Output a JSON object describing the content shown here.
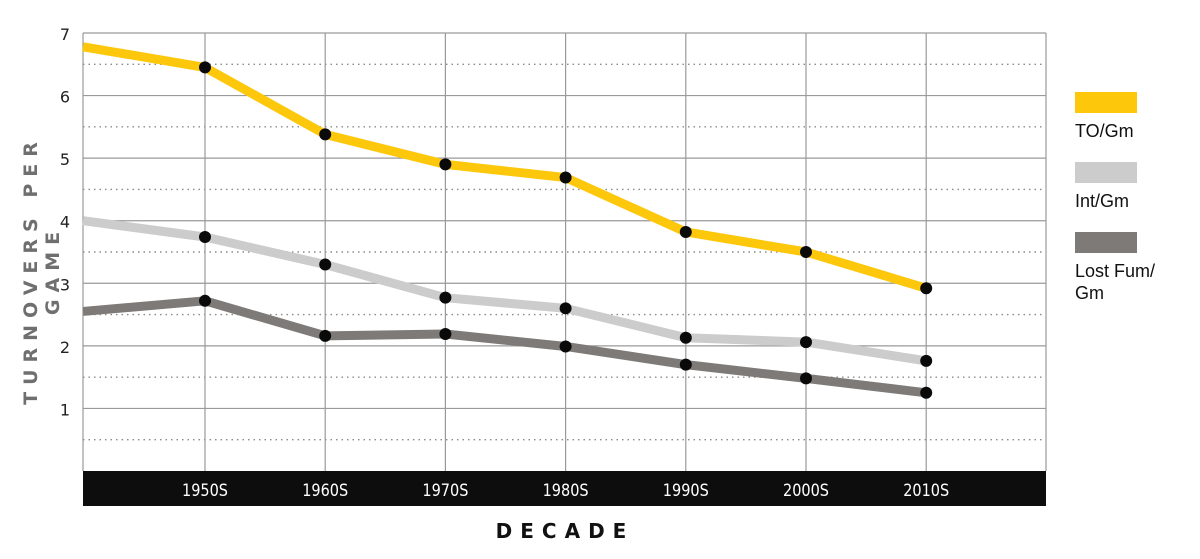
{
  "chart_data": {
    "type": "line",
    "title": "",
    "xlabel": "DECADE",
    "ylabel": "TURNOVERS PER GAME",
    "categories": [
      "1950S",
      "1960S",
      "1970S",
      "1980S",
      "1990S",
      "2000S",
      "2010S"
    ],
    "y_ticks": [
      "1",
      "2",
      "3",
      "4",
      "5",
      "6",
      "7"
    ],
    "ylim": [
      0,
      7
    ],
    "grid": true,
    "legend_position": "right",
    "series": [
      {
        "name": "TO/Gm",
        "color": "#fdc70c",
        "start_value": 6.78,
        "values": [
          6.45,
          5.38,
          4.9,
          4.69,
          3.82,
          3.5,
          2.92
        ]
      },
      {
        "name": "Int/Gm",
        "color": "#cccccc",
        "start_value": 4.0,
        "values": [
          3.74,
          3.3,
          2.77,
          2.6,
          2.13,
          2.06,
          1.76
        ]
      },
      {
        "name": "Lost Fum/\nGm",
        "color": "#7d7a77",
        "start_value": 2.55,
        "values": [
          2.72,
          2.16,
          2.19,
          1.99,
          1.7,
          1.48,
          1.25
        ]
      }
    ]
  }
}
